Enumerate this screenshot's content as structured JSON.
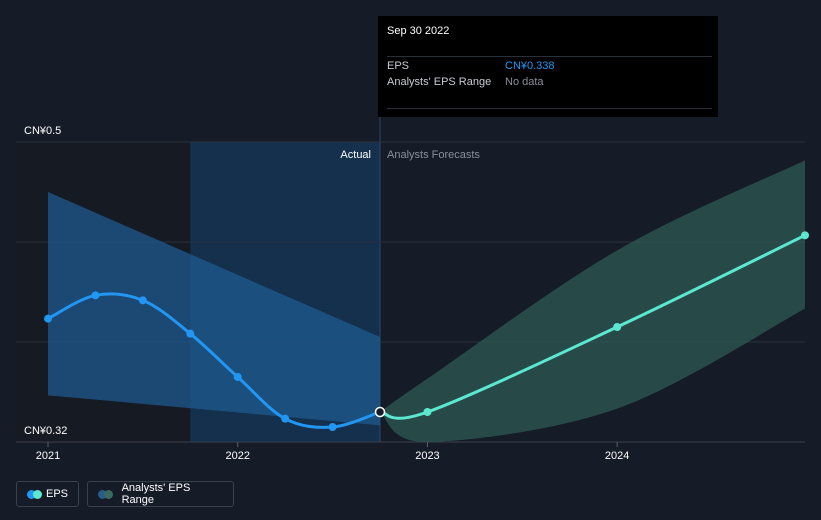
{
  "tooltip": {
    "date": "Sep 30 2022",
    "rows": [
      {
        "label": "EPS",
        "value": "CN¥0.338",
        "value_color": "#2196f3"
      },
      {
        "label": "Analysts' EPS Range",
        "value": "No data",
        "value_color": "#8a8f98"
      }
    ]
  },
  "legend": [
    {
      "label": "EPS",
      "color_a": "#2196f3",
      "color_b": "#5ce8d0"
    },
    {
      "label": "Analysts' EPS Range",
      "color_a": "#2a5c8a",
      "color_b": "#3a6b62"
    }
  ],
  "colors": {
    "eps_actual": "#2196f3",
    "eps_forecast": "#5ce8d0",
    "range_actual": "#1e5a8f",
    "range_forecast": "#2f5e58"
  },
  "chart_data": {
    "type": "line",
    "y_labels": {
      "top": "CN¥0.5",
      "bottom": "CN¥0.32"
    },
    "ylim": [
      0.32,
      0.5
    ],
    "xlim": [
      2021.0,
      2024.99
    ],
    "x_ticks": [
      {
        "value": 2021,
        "label": "2021"
      },
      {
        "value": 2022,
        "label": "2022"
      },
      {
        "value": 2023,
        "label": "2023"
      },
      {
        "value": 2024,
        "label": "2024"
      }
    ],
    "grid": true,
    "region_labels": {
      "actual": "Actual",
      "forecast": "Analysts Forecasts"
    },
    "divider_x": 2022.75,
    "highlight_start_x": 2021.75,
    "series": [
      {
        "name": "EPS",
        "segment": "actual",
        "x": [
          2021.0,
          2021.25,
          2021.5,
          2021.75,
          2022.0,
          2022.25,
          2022.5,
          2022.75
        ],
        "y": [
          0.394,
          0.408,
          0.405,
          0.385,
          0.359,
          0.334,
          0.329,
          0.338
        ]
      },
      {
        "name": "EPS",
        "segment": "forecast",
        "x": [
          2022.75,
          2023.0,
          2024.0,
          2024.99
        ],
        "y": [
          0.338,
          0.338,
          0.389,
          0.444
        ]
      }
    ],
    "ranges": [
      {
        "name": "Analysts' EPS Range",
        "segment": "actual",
        "x": [
          2021.0,
          2022.75
        ],
        "low": [
          0.348,
          0.33
        ],
        "high": [
          0.47,
          0.383
        ]
      },
      {
        "name": "Analysts' EPS Range",
        "segment": "forecast",
        "x": [
          2022.75,
          2023.0,
          2024.0,
          2024.99
        ],
        "low": [
          0.338,
          0.32,
          0.34,
          0.4
        ],
        "high": [
          0.338,
          0.358,
          0.435,
          0.489
        ]
      }
    ]
  }
}
